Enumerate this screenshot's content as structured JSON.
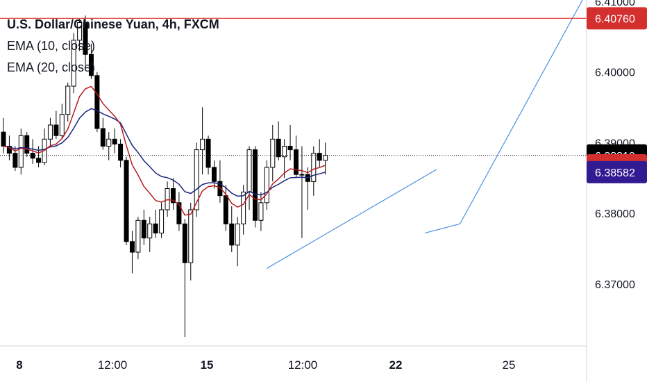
{
  "legend": {
    "title": "U.S. Dollar/Chinese Yuan, 4h, FXCM",
    "ema10": "EMA (10, close)",
    "ema20": "EMA (20, close)"
  },
  "colors": {
    "up_candle": "#ffffff",
    "down_candle": "#000000",
    "ema10": "#b71c1c",
    "ema20": "#1a237e",
    "trendline": "#4a90e2",
    "horizontal_line": "#e53935",
    "badge_red": "#d32f2f",
    "badge_blue": "#311b92",
    "badge_black": "#000000"
  },
  "price_axis": {
    "ticks": [
      "6.41000",
      "6.40000",
      "6.39000",
      "6.38000",
      "6.37000"
    ],
    "tick_values": [
      6.41,
      6.4,
      6.39,
      6.38,
      6.37
    ],
    "labels": [
      {
        "text": "6.40760",
        "value": 6.4076,
        "color": "#d32f2f"
      },
      {
        "text": "6.38819",
        "value": 6.38819,
        "color": "#000000"
      },
      {
        "text": "6.38679",
        "value": 6.38679,
        "color": "#d32f2f"
      },
      {
        "text": "6.38582",
        "value": 6.38582,
        "color": "#311b92"
      }
    ]
  },
  "time_axis": {
    "ticks": [
      {
        "text": "8",
        "bold": true
      },
      {
        "text": "12:00",
        "bold": false
      },
      {
        "text": "15",
        "bold": true
      },
      {
        "text": "12:00",
        "bold": false
      },
      {
        "text": "22",
        "bold": true
      },
      {
        "text": "25",
        "bold": false
      }
    ]
  },
  "chart_data": {
    "type": "candlestick",
    "symbol": "USD/CNY",
    "timeframe": "4h",
    "source": "FXCM",
    "ylim": [
      6.362,
      6.411
    ],
    "horizontal_line": 6.4076,
    "last_price": 6.38819,
    "ema10_last": 6.38679,
    "ema20_last": 6.38582,
    "candles": [
      [
        6.3915,
        6.3935,
        6.3885,
        6.3895
      ],
      [
        6.3895,
        6.391,
        6.3875,
        6.3885
      ],
      [
        6.3885,
        6.3895,
        6.386,
        6.3865
      ],
      [
        6.3865,
        6.392,
        6.3855,
        6.391
      ],
      [
        6.391,
        6.3915,
        6.388,
        6.3885
      ],
      [
        6.3885,
        6.3905,
        6.387,
        6.3878
      ],
      [
        6.3878,
        6.3895,
        6.3865,
        6.3872
      ],
      [
        6.3872,
        6.392,
        6.3868,
        6.3905
      ],
      [
        6.3905,
        6.3935,
        6.3895,
        6.3925
      ],
      [
        6.3925,
        6.3945,
        6.3905,
        6.391
      ],
      [
        6.391,
        6.3955,
        6.3905,
        6.394
      ],
      [
        6.394,
        6.3985,
        6.393,
        6.398
      ],
      [
        6.398,
        6.4055,
        6.397,
        6.4045
      ],
      [
        6.4045,
        6.4075,
        6.403,
        6.407
      ],
      [
        6.407,
        6.408,
        6.401,
        6.4025
      ],
      [
        6.4025,
        6.404,
        6.399,
        6.3995
      ],
      [
        6.3995,
        6.4,
        6.3915,
        6.392
      ],
      [
        6.392,
        6.3935,
        6.389,
        6.3895
      ],
      [
        6.3895,
        6.3915,
        6.3875,
        6.3905
      ],
      [
        6.3905,
        6.392,
        6.3885,
        6.3898
      ],
      [
        6.3898,
        6.3905,
        6.3865,
        6.3875
      ],
      [
        6.3875,
        6.388,
        6.3755,
        6.376
      ],
      [
        6.376,
        6.3775,
        6.3715,
        6.3745
      ],
      [
        6.3745,
        6.3795,
        6.3735,
        6.379
      ],
      [
        6.379,
        6.3805,
        6.3755,
        6.3765
      ],
      [
        6.3765,
        6.3795,
        6.3745,
        6.3785
      ],
      [
        6.3785,
        6.3805,
        6.3765,
        6.3772
      ],
      [
        6.3772,
        6.3815,
        6.3765,
        6.3805
      ],
      [
        6.3805,
        6.3845,
        6.3795,
        6.3835
      ],
      [
        6.3835,
        6.385,
        6.3805,
        6.3815
      ],
      [
        6.3815,
        6.383,
        6.3775,
        6.3785
      ],
      [
        6.3785,
        6.3792,
        6.3625,
        6.373
      ],
      [
        6.373,
        6.3815,
        6.3705,
        6.3805
      ],
      [
        6.3805,
        6.39,
        6.3795,
        6.389
      ],
      [
        6.389,
        6.395,
        6.3855,
        6.3905
      ],
      [
        6.3905,
        6.391,
        6.3855,
        6.3865
      ],
      [
        6.3865,
        6.3875,
        6.3835,
        6.3845
      ],
      [
        6.3845,
        6.3875,
        6.3815,
        6.3825
      ],
      [
        6.3825,
        6.384,
        6.3775,
        6.3785
      ],
      [
        6.3785,
        6.381,
        6.3745,
        6.3755
      ],
      [
        6.3755,
        6.3795,
        6.3725,
        6.3785
      ],
      [
        6.3785,
        6.384,
        6.377,
        6.383
      ],
      [
        6.383,
        6.3895,
        6.3805,
        6.389
      ],
      [
        6.389,
        6.3895,
        6.378,
        6.379
      ],
      [
        6.379,
        6.383,
        6.3775,
        6.3815
      ],
      [
        6.3815,
        6.3875,
        6.3805,
        6.3865
      ],
      [
        6.3865,
        6.3925,
        6.3845,
        6.3905
      ],
      [
        6.3905,
        6.393,
        6.3875,
        6.388
      ],
      [
        6.388,
        6.3905,
        6.385,
        6.3895
      ],
      [
        6.3895,
        6.3925,
        6.3875,
        6.389
      ],
      [
        6.389,
        6.391,
        6.385,
        6.3855
      ],
      [
        6.3855,
        6.3895,
        6.3765,
        6.3855
      ],
      [
        6.3855,
        6.3865,
        6.3805,
        6.3845
      ],
      [
        6.3845,
        6.3895,
        6.3825,
        6.3885
      ],
      [
        6.3885,
        6.3905,
        6.3865,
        6.3875
      ],
      [
        6.3875,
        6.39,
        6.3855,
        6.3882
      ]
    ],
    "trendlines": [
      {
        "from": {
          "bar": 45,
          "price": 6.3722
        },
        "to": {
          "bar": 74,
          "price": 6.3862
        }
      },
      {
        "from": {
          "bar": 72,
          "price": 6.3772
        },
        "to": {
          "bar": 78,
          "price": 6.3785
        }
      },
      {
        "from": {
          "bar": 78,
          "price": 6.3785
        },
        "to": {
          "bar": 99,
          "price": 6.4103
        }
      }
    ]
  }
}
